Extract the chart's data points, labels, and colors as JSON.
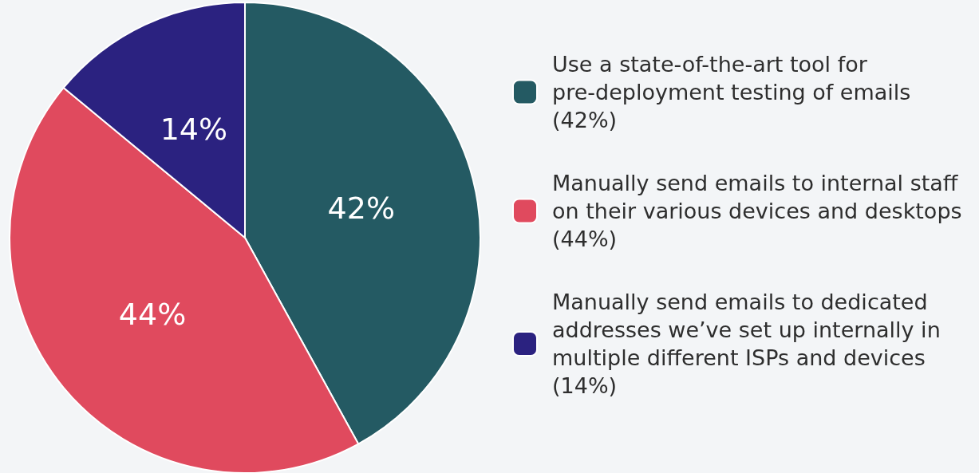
{
  "chart_data": {
    "type": "pie",
    "categories": [
      "Use a state-of-the-art tool for pre-deployment testing of emails (42%)",
      "Manually send emails to internal staff on their various devices and desktops (44%)",
      "Manually send emails to dedicated addresses we’ve set up internally in multiple different ISPs and devices (14%)"
    ],
    "values": [
      42,
      44,
      14
    ],
    "colors": [
      "#245a63",
      "#e04a5e",
      "#2b2280"
    ],
    "value_labels": [
      "42%",
      "44%",
      "14%"
    ],
    "legend": "right"
  }
}
